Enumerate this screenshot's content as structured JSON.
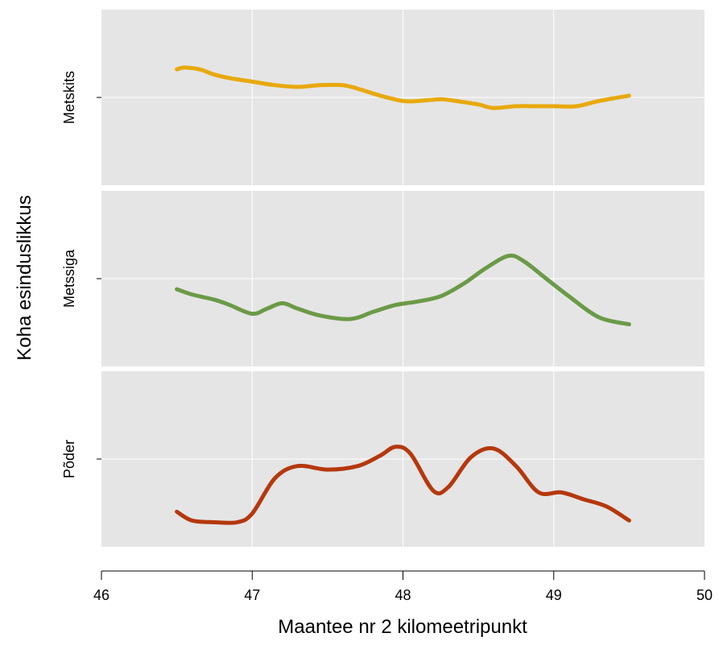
{
  "chart_data": {
    "type": "line",
    "title": "",
    "xlabel": "Maantee nr 2 kilomeetripunkt",
    "ylabel": "Koha esinduslikkus",
    "xlim": [
      46,
      50
    ],
    "xticks": [
      "46",
      "47",
      "48",
      "49",
      "50"
    ],
    "grid": true,
    "legend": "none",
    "panels": [
      {
        "name": "Metskits",
        "color": "#E8A90E",
        "x": [
          46.5,
          46.55,
          46.65,
          46.75,
          46.85,
          47.0,
          47.15,
          47.3,
          47.45,
          47.6,
          47.7,
          47.85,
          48.0,
          48.1,
          48.25,
          48.35,
          48.5,
          48.6,
          48.75,
          48.9,
          49.0,
          49.15,
          49.3,
          49.5
        ],
        "y": [
          0.66,
          0.67,
          0.66,
          0.63,
          0.61,
          0.59,
          0.57,
          0.56,
          0.57,
          0.57,
          0.55,
          0.51,
          0.48,
          0.48,
          0.49,
          0.48,
          0.46,
          0.44,
          0.45,
          0.45,
          0.45,
          0.45,
          0.48,
          0.51
        ]
      },
      {
        "name": "Metssiga",
        "color": "#6B9A47",
        "x": [
          46.5,
          46.6,
          46.75,
          46.85,
          47.0,
          47.1,
          47.2,
          47.3,
          47.45,
          47.65,
          47.8,
          47.95,
          48.1,
          48.25,
          48.4,
          48.55,
          48.7,
          48.8,
          48.95,
          49.1,
          49.3,
          49.5
        ],
        "y": [
          0.44,
          0.41,
          0.38,
          0.35,
          0.3,
          0.33,
          0.36,
          0.33,
          0.29,
          0.27,
          0.31,
          0.35,
          0.37,
          0.4,
          0.47,
          0.56,
          0.63,
          0.6,
          0.5,
          0.4,
          0.28,
          0.24
        ]
      },
      {
        "name": "Põder",
        "color": "#B5380D",
        "x": [
          46.5,
          46.6,
          46.75,
          46.9,
          47.0,
          47.15,
          47.3,
          47.5,
          47.7,
          47.85,
          47.95,
          48.05,
          48.2,
          48.3,
          48.45,
          48.6,
          48.75,
          48.9,
          49.05,
          49.2,
          49.35,
          49.5
        ],
        "y": [
          0.2,
          0.15,
          0.14,
          0.14,
          0.19,
          0.39,
          0.46,
          0.44,
          0.46,
          0.52,
          0.57,
          0.53,
          0.32,
          0.34,
          0.51,
          0.56,
          0.46,
          0.31,
          0.31,
          0.27,
          0.23,
          0.15
        ]
      }
    ]
  }
}
